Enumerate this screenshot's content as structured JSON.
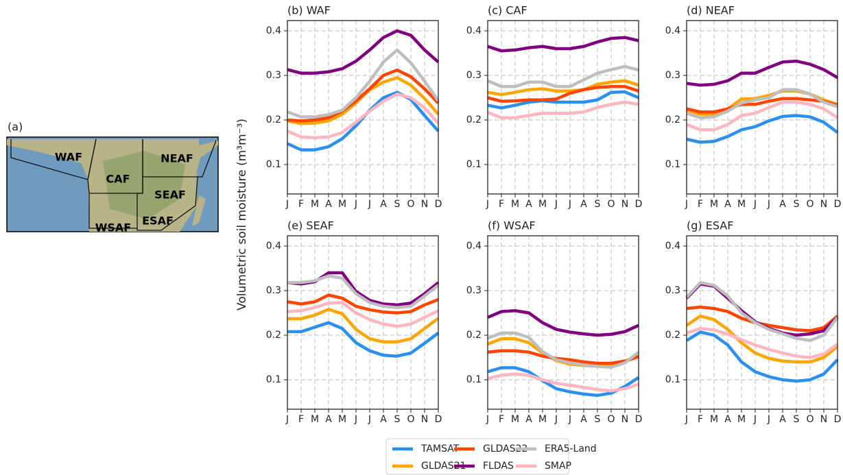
{
  "map": {
    "label": "(a)",
    "regions": [
      "WAF",
      "CAF",
      "NEAF",
      "SEAF",
      "WSAF",
      "ESAF"
    ]
  },
  "chart_data": [
    {
      "type": "line",
      "title": "(b) WAF",
      "ylabel": "Volumetric soil moisture (m³m⁻³)",
      "categories": [
        "J",
        "F",
        "M",
        "A",
        "M",
        "J",
        "J",
        "A",
        "S",
        "O",
        "N",
        "D"
      ],
      "ylim": [
        0.034,
        0.423
      ],
      "yticks": [
        0.1,
        0.2,
        0.3,
        0.4
      ],
      "grid": true,
      "series": [
        {
          "name": "TAMSAT",
          "color": "#2b8ff0",
          "values": [
            0.147,
            0.133,
            0.133,
            0.14,
            0.158,
            0.187,
            0.222,
            0.25,
            0.262,
            0.246,
            0.21,
            0.175
          ]
        },
        {
          "name": "GLDAS21",
          "color": "#ffa500",
          "values": [
            0.198,
            0.192,
            0.193,
            0.198,
            0.213,
            0.238,
            0.268,
            0.285,
            0.295,
            0.278,
            0.248,
            0.213
          ]
        },
        {
          "name": "GLDAS22",
          "color": "#ff4500",
          "values": [
            0.2,
            0.198,
            0.2,
            0.205,
            0.22,
            0.243,
            0.27,
            0.3,
            0.312,
            0.297,
            0.27,
            0.238
          ]
        },
        {
          "name": "FLDAS",
          "color": "#800080",
          "values": [
            0.313,
            0.305,
            0.305,
            0.308,
            0.315,
            0.332,
            0.357,
            0.385,
            0.4,
            0.39,
            0.357,
            0.33
          ]
        },
        {
          "name": "ERA5-Land",
          "color": "#bebebe",
          "values": [
            0.218,
            0.207,
            0.207,
            0.212,
            0.222,
            0.25,
            0.287,
            0.33,
            0.357,
            0.328,
            0.287,
            0.243
          ]
        },
        {
          "name": "SMAP",
          "color": "#ffb6c1",
          "values": [
            0.175,
            0.162,
            0.16,
            0.162,
            0.172,
            0.195,
            0.22,
            0.242,
            0.258,
            0.25,
            0.227,
            0.193
          ]
        }
      ]
    },
    {
      "type": "line",
      "title": "(c) CAF",
      "categories": [
        "J",
        "F",
        "M",
        "A",
        "M",
        "J",
        "J",
        "A",
        "S",
        "O",
        "N",
        "D"
      ],
      "ylim": [
        0.034,
        0.423
      ],
      "yticks": [
        0.1,
        0.2,
        0.3,
        0.4
      ],
      "grid": true,
      "series": [
        {
          "name": "TAMSAT",
          "color": "#2b8ff0",
          "values": [
            0.233,
            0.227,
            0.233,
            0.24,
            0.243,
            0.24,
            0.24,
            0.24,
            0.245,
            0.262,
            0.263,
            0.25
          ]
        },
        {
          "name": "GLDAS21",
          "color": "#ffa500",
          "values": [
            0.262,
            0.257,
            0.262,
            0.268,
            0.27,
            0.265,
            0.265,
            0.268,
            0.28,
            0.285,
            0.288,
            0.278
          ]
        },
        {
          "name": "GLDAS22",
          "color": "#ff4500",
          "values": [
            0.25,
            0.242,
            0.243,
            0.245,
            0.245,
            0.247,
            0.26,
            0.268,
            0.273,
            0.275,
            0.275,
            0.265
          ]
        },
        {
          "name": "FLDAS",
          "color": "#800080",
          "values": [
            0.365,
            0.355,
            0.357,
            0.362,
            0.365,
            0.36,
            0.36,
            0.365,
            0.375,
            0.383,
            0.385,
            0.378
          ]
        },
        {
          "name": "ERA5-Land",
          "color": "#bebebe",
          "values": [
            0.288,
            0.275,
            0.275,
            0.285,
            0.285,
            0.275,
            0.275,
            0.29,
            0.305,
            0.313,
            0.32,
            0.312
          ]
        },
        {
          "name": "SMAP",
          "color": "#ffb6c1",
          "values": [
            0.217,
            0.205,
            0.205,
            0.21,
            0.215,
            0.215,
            0.215,
            0.218,
            0.228,
            0.235,
            0.24,
            0.235
          ]
        }
      ]
    },
    {
      "type": "line",
      "title": "(d) NEAF",
      "categories": [
        "J",
        "F",
        "M",
        "A",
        "M",
        "J",
        "J",
        "A",
        "S",
        "O",
        "N",
        "D"
      ],
      "ylim": [
        0.034,
        0.423
      ],
      "yticks": [
        0.1,
        0.2,
        0.3,
        0.4
      ],
      "grid": true,
      "series": [
        {
          "name": "TAMSAT",
          "color": "#2b8ff0",
          "values": [
            0.157,
            0.15,
            0.152,
            0.163,
            0.178,
            0.185,
            0.198,
            0.208,
            0.21,
            0.207,
            0.195,
            0.172
          ]
        },
        {
          "name": "GLDAS21",
          "color": "#ffa500",
          "values": [
            0.222,
            0.213,
            0.213,
            0.225,
            0.247,
            0.248,
            0.255,
            0.265,
            0.265,
            0.258,
            0.245,
            0.235
          ]
        },
        {
          "name": "GLDAS22",
          "color": "#ff4500",
          "values": [
            0.225,
            0.218,
            0.218,
            0.225,
            0.235,
            0.235,
            0.242,
            0.248,
            0.248,
            0.245,
            0.242,
            0.233
          ]
        },
        {
          "name": "FLDAS",
          "color": "#800080",
          "values": [
            0.282,
            0.278,
            0.28,
            0.288,
            0.305,
            0.305,
            0.318,
            0.33,
            0.332,
            0.325,
            0.313,
            0.295
          ]
        },
        {
          "name": "ERA5-Land",
          "color": "#bebebe",
          "values": [
            0.215,
            0.205,
            0.207,
            0.22,
            0.238,
            0.245,
            0.25,
            0.268,
            0.268,
            0.258,
            0.24,
            0.23
          ]
        },
        {
          "name": "SMAP",
          "color": "#ffb6c1",
          "values": [
            0.19,
            0.178,
            0.178,
            0.19,
            0.21,
            0.215,
            0.228,
            0.24,
            0.24,
            0.235,
            0.225,
            0.205
          ]
        }
      ]
    },
    {
      "type": "line",
      "title": "(e) SEAF",
      "categories": [
        "J",
        "F",
        "M",
        "A",
        "M",
        "J",
        "J",
        "A",
        "S",
        "O",
        "N",
        "D"
      ],
      "ylim": [
        0.034,
        0.423
      ],
      "yticks": [
        0.1,
        0.2,
        0.3,
        0.4
      ],
      "grid": true,
      "series": [
        {
          "name": "TAMSAT",
          "color": "#2b8ff0",
          "values": [
            0.208,
            0.208,
            0.218,
            0.228,
            0.215,
            0.183,
            0.165,
            0.155,
            0.153,
            0.16,
            0.182,
            0.205
          ]
        },
        {
          "name": "GLDAS21",
          "color": "#ffa500",
          "values": [
            0.237,
            0.237,
            0.245,
            0.258,
            0.248,
            0.213,
            0.192,
            0.185,
            0.185,
            0.192,
            0.215,
            0.238
          ]
        },
        {
          "name": "GLDAS22",
          "color": "#ff4500",
          "values": [
            0.275,
            0.27,
            0.275,
            0.29,
            0.283,
            0.265,
            0.257,
            0.252,
            0.25,
            0.253,
            0.268,
            0.28
          ]
        },
        {
          "name": "FLDAS",
          "color": "#800080",
          "values": [
            0.318,
            0.315,
            0.32,
            0.34,
            0.34,
            0.298,
            0.278,
            0.27,
            0.268,
            0.272,
            0.293,
            0.318
          ]
        },
        {
          "name": "ERA5-Land",
          "color": "#bebebe",
          "values": [
            0.318,
            0.318,
            0.322,
            0.333,
            0.328,
            0.293,
            0.273,
            0.265,
            0.262,
            0.265,
            0.288,
            0.312
          ]
        },
        {
          "name": "SMAP",
          "color": "#ffb6c1",
          "values": [
            0.253,
            0.255,
            0.262,
            0.272,
            0.273,
            0.25,
            0.235,
            0.225,
            0.22,
            0.225,
            0.24,
            0.255
          ]
        }
      ]
    },
    {
      "type": "line",
      "title": "(f) WSAF",
      "categories": [
        "J",
        "F",
        "M",
        "A",
        "M",
        "J",
        "J",
        "A",
        "S",
        "O",
        "N",
        "D"
      ],
      "ylim": [
        0.034,
        0.423
      ],
      "yticks": [
        0.1,
        0.2,
        0.3,
        0.4
      ],
      "grid": true,
      "series": [
        {
          "name": "TAMSAT",
          "color": "#2b8ff0",
          "values": [
            0.118,
            0.127,
            0.127,
            0.118,
            0.098,
            0.08,
            0.073,
            0.068,
            0.065,
            0.07,
            0.085,
            0.105
          ]
        },
        {
          "name": "GLDAS21",
          "color": "#ffa500",
          "values": [
            0.18,
            0.192,
            0.192,
            0.183,
            0.16,
            0.143,
            0.135,
            0.132,
            0.13,
            0.132,
            0.14,
            0.153
          ]
        },
        {
          "name": "GLDAS22",
          "color": "#ff4500",
          "values": [
            0.162,
            0.165,
            0.165,
            0.162,
            0.153,
            0.148,
            0.145,
            0.14,
            0.137,
            0.137,
            0.142,
            0.152
          ]
        },
        {
          "name": "FLDAS",
          "color": "#800080",
          "values": [
            0.24,
            0.253,
            0.255,
            0.25,
            0.228,
            0.213,
            0.207,
            0.203,
            0.2,
            0.202,
            0.208,
            0.222
          ]
        },
        {
          "name": "ERA5-Land",
          "color": "#bebebe",
          "values": [
            0.193,
            0.205,
            0.205,
            0.195,
            0.163,
            0.145,
            0.138,
            0.133,
            0.13,
            0.128,
            0.138,
            0.162
          ]
        },
        {
          "name": "SMAP",
          "color": "#ffb6c1",
          "values": [
            0.103,
            0.11,
            0.113,
            0.11,
            0.1,
            0.092,
            0.088,
            0.083,
            0.078,
            0.075,
            0.08,
            0.09
          ]
        }
      ]
    },
    {
      "type": "line",
      "title": "(g) ESAF",
      "categories": [
        "J",
        "F",
        "M",
        "A",
        "M",
        "J",
        "J",
        "A",
        "S",
        "O",
        "N",
        "D"
      ],
      "ylim": [
        0.034,
        0.423
      ],
      "yticks": [
        0.1,
        0.2,
        0.3,
        0.4
      ],
      "grid": true,
      "series": [
        {
          "name": "TAMSAT",
          "color": "#2b8ff0",
          "values": [
            0.188,
            0.207,
            0.2,
            0.178,
            0.14,
            0.118,
            0.107,
            0.1,
            0.097,
            0.1,
            0.113,
            0.145
          ]
        },
        {
          "name": "GLDAS21",
          "color": "#ffa500",
          "values": [
            0.222,
            0.243,
            0.235,
            0.213,
            0.183,
            0.16,
            0.148,
            0.142,
            0.14,
            0.14,
            0.15,
            0.175
          ]
        },
        {
          "name": "GLDAS22",
          "color": "#ff4500",
          "values": [
            0.26,
            0.263,
            0.26,
            0.253,
            0.238,
            0.228,
            0.222,
            0.217,
            0.212,
            0.21,
            0.217,
            0.243
          ]
        },
        {
          "name": "FLDAS",
          "color": "#800080",
          "values": [
            0.283,
            0.315,
            0.31,
            0.283,
            0.255,
            0.23,
            0.215,
            0.205,
            0.2,
            0.203,
            0.21,
            0.24
          ]
        },
        {
          "name": "ERA5-Land",
          "color": "#bebebe",
          "values": [
            0.285,
            0.318,
            0.312,
            0.288,
            0.25,
            0.228,
            0.213,
            0.203,
            0.193,
            0.188,
            0.2,
            0.24
          ]
        },
        {
          "name": "SMAP",
          "color": "#ffb6c1",
          "values": [
            0.205,
            0.215,
            0.212,
            0.202,
            0.19,
            0.178,
            0.168,
            0.16,
            0.153,
            0.15,
            0.158,
            0.18
          ]
        }
      ]
    }
  ]
}
